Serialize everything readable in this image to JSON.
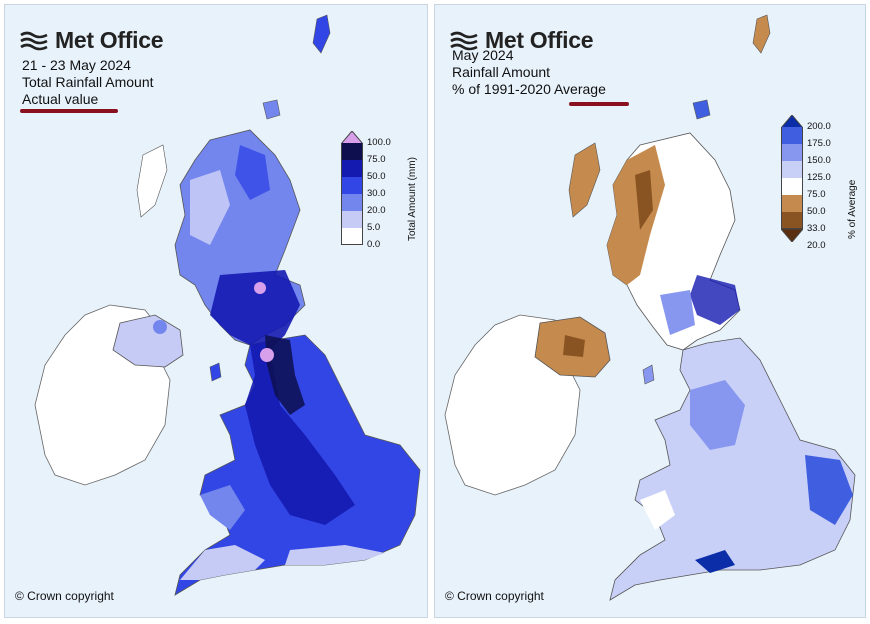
{
  "left": {
    "brand": "Met Office",
    "lines": [
      "21 - 23 May 2024",
      "Total Rainfall Amount",
      "Actual value"
    ],
    "copyright": "© Crown copyright",
    "legend": {
      "title": "Total Amount (mm)",
      "ticks": [
        "100.0",
        "75.0",
        "50.0",
        "30.0",
        "20.0",
        "5.0",
        "0.0"
      ],
      "colors": [
        "#d8a0ea",
        "#0d0f4e",
        "#1419b0",
        "#3246e6",
        "#7386ee",
        "#c6cbf5",
        "#ffffff"
      ]
    }
  },
  "right": {
    "brand": "Met Office",
    "lines": [
      "May 2024",
      "Rainfall Amount",
      "% of 1991-2020 Average"
    ],
    "copyright": "© Crown copyright",
    "legend": {
      "title": "% of Average",
      "ticks": [
        "200.0",
        "175.0",
        "150.0",
        "125.0",
        "75.0",
        "50.0",
        "33.0",
        "20.0"
      ],
      "colors": [
        "#0b2ea8",
        "#3f5fe0",
        "#8797ef",
        "#c9d0f8",
        "#ffffff",
        "#c58a4e",
        "#8a5422",
        "#5a2e10"
      ]
    }
  },
  "colors": {
    "underline": "#8a1020",
    "ireland": "#ffffff",
    "sea": "#e8f2fb"
  }
}
